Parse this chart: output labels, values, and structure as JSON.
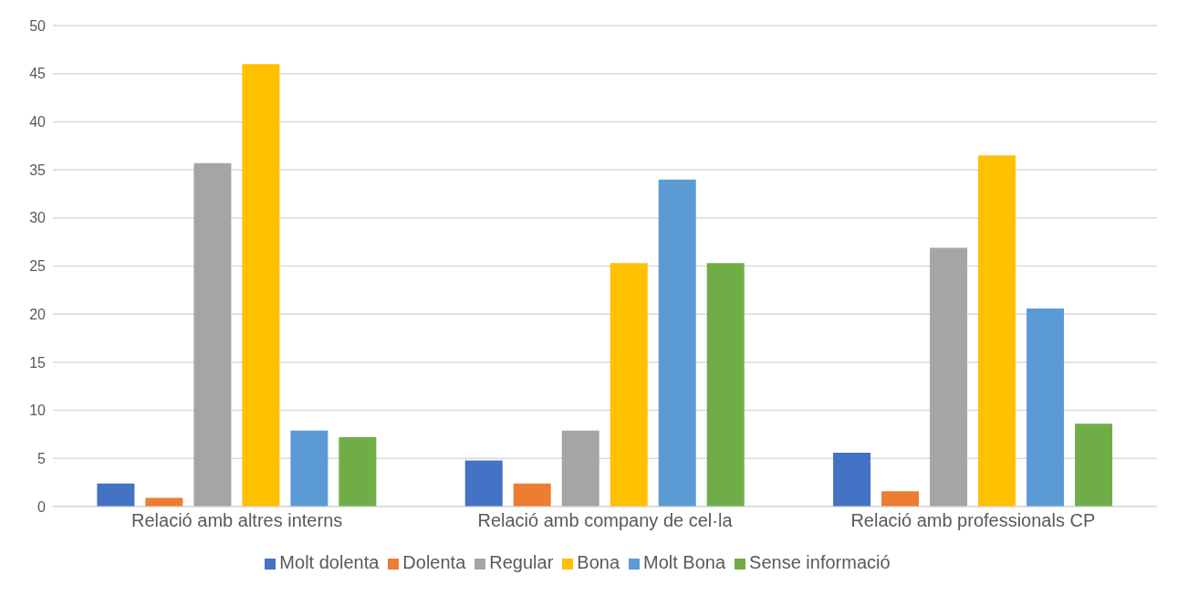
{
  "chart_data": {
    "type": "bar",
    "categories": [
      "Relació amb altres interns",
      "Relació amb company de cel·la",
      "Relació amb professionals CP"
    ],
    "series": [
      {
        "name": "Molt dolenta",
        "color": "#4472c4",
        "values": [
          2.4,
          4.8,
          5.6
        ]
      },
      {
        "name": "Dolenta",
        "color": "#ed7d31",
        "values": [
          0.9,
          2.4,
          1.6
        ]
      },
      {
        "name": "Regular",
        "color": "#a5a5a5",
        "values": [
          35.7,
          7.9,
          26.9
        ]
      },
      {
        "name": "Bona",
        "color": "#ffc000",
        "values": [
          46,
          25.3,
          36.5
        ]
      },
      {
        "name": "Molt Bona",
        "color": "#5b9bd5",
        "values": [
          7.9,
          34,
          20.6
        ]
      },
      {
        "name": "Sense informació",
        "color": "#70ad47",
        "values": [
          7.2,
          25.3,
          8.6
        ]
      }
    ],
    "ylim": [
      0,
      50
    ],
    "yticks": [
      0,
      5,
      10,
      15,
      20,
      25,
      30,
      35,
      40,
      45,
      50
    ],
    "grid": "y",
    "legend": "bottom"
  }
}
